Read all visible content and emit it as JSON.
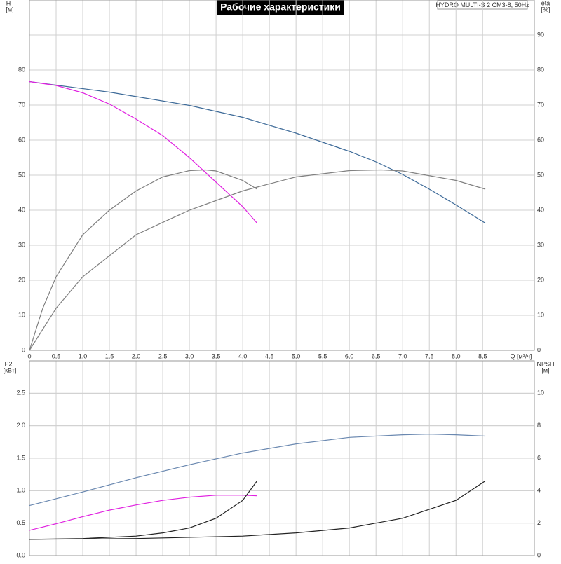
{
  "chart_data": [
    {
      "type": "line",
      "title": "Рабочие характеристики",
      "annotation": "HYDRO MULTI-S 2 CM3-8, 50Hz",
      "ylabel": "H",
      "yunit": "[м]",
      "y2label": "eta",
      "y2unit": "[%]",
      "xlabel": "Q [м³/ч]",
      "xlim": [
        0,
        9.47
      ],
      "xticks": [
        0,
        {
          "value": 0.5,
          "label": "0,5"
        },
        {
          "value": 1,
          "label": "1,0"
        },
        {
          "value": 1.5,
          "label": "1,5"
        },
        {
          "value": 2,
          "label": "2,0"
        },
        {
          "value": 2.5,
          "label": "2,5"
        },
        {
          "value": 3,
          "label": "3,0"
        },
        {
          "value": 3.5,
          "label": "3,5"
        },
        {
          "value": 4,
          "label": "4,0"
        },
        {
          "value": 4.5,
          "label": "4,5"
        },
        {
          "value": 5,
          "label": "5,0"
        },
        {
          "value": 5.5,
          "label": "5,5"
        },
        {
          "value": 6,
          "label": "6,0"
        },
        {
          "value": 6.5,
          "label": "6,5"
        },
        {
          "value": 7,
          "label": "7,0"
        },
        {
          "value": 7.5,
          "label": "7,5"
        },
        {
          "value": 8,
          "label": "8,0"
        },
        {
          "value": 8.5,
          "label": "8,5"
        }
      ],
      "ylim": [
        0,
        100
      ],
      "yticks": [
        0,
        10,
        20,
        30,
        40,
        50,
        60,
        70,
        80
      ],
      "y2lim": [
        0,
        100
      ],
      "y2ticks": [
        0,
        10,
        20,
        30,
        40,
        50,
        60,
        70,
        80,
        90
      ],
      "grid": true,
      "series": [
        {
          "color": "#3d6a98",
          "x": [
            0,
            1.5,
            3,
            4,
            5,
            6,
            6.5,
            7,
            7.5,
            8,
            8.55
          ],
          "values": [
            76.7,
            73.7,
            69.9,
            66.5,
            62,
            56.8,
            53.8,
            50.2,
            46,
            41.5,
            36.3
          ]
        },
        {
          "color": "#e020e0",
          "x": [
            0,
            0.5,
            1,
            1.5,
            2,
            2.5,
            3,
            3.5,
            4,
            4.27
          ],
          "values": [
            76.7,
            75.6,
            73.5,
            70.3,
            66,
            61.3,
            55,
            48,
            41,
            36.3
          ]
        },
        {
          "color": "#808080",
          "axis": "y2",
          "x": [
            0,
            0.25,
            0.5,
            1,
            1.5,
            2,
            2.5,
            3,
            3.3,
            3.5,
            4,
            4.27
          ],
          "values": [
            0,
            12,
            21,
            33,
            40,
            45.5,
            49.5,
            51.3,
            51.5,
            51.2,
            48.5,
            46
          ]
        },
        {
          "color": "#808080",
          "axis": "y2",
          "x": [
            0,
            0.5,
            1,
            2,
            3,
            4,
            5,
            6,
            6.6,
            7,
            8,
            8.55
          ],
          "values": [
            0,
            12,
            21,
            33,
            40,
            45.5,
            49.5,
            51.3,
            51.5,
            51.2,
            48.5,
            46
          ]
        }
      ]
    },
    {
      "type": "line",
      "ylabel": "P2",
      "yunit": "[кВт]",
      "y2label": "NPSH",
      "y2unit": "[м]",
      "xlim": [
        0,
        9.47
      ],
      "ylim": [
        0,
        3
      ],
      "yticks": [
        {
          "value": 0,
          "label": "0.0"
        },
        {
          "value": 0.5,
          "label": "0.5"
        },
        {
          "value": 1,
          "label": "1.0"
        },
        {
          "value": 1.5,
          "label": "1.5"
        },
        {
          "value": 2,
          "label": "2.0"
        },
        {
          "value": 2.5,
          "label": "2.5"
        }
      ],
      "y2lim": [
        0,
        12
      ],
      "y2ticks": [
        0,
        2,
        4,
        6,
        8,
        10
      ],
      "grid": true,
      "series": [
        {
          "color": "#6a88b0",
          "x": [
            0,
            1,
            2,
            3,
            4,
            5,
            6,
            7,
            7.5,
            8,
            8.55
          ],
          "values": [
            0.77,
            0.98,
            1.2,
            1.4,
            1.58,
            1.72,
            1.82,
            1.86,
            1.87,
            1.86,
            1.84
          ]
        },
        {
          "color": "#e020e0",
          "x": [
            0,
            0.5,
            1,
            1.5,
            2,
            2.5,
            3,
            3.5,
            4,
            4.27
          ],
          "values": [
            0.39,
            0.49,
            0.6,
            0.7,
            0.78,
            0.85,
            0.9,
            0.93,
            0.93,
            0.92
          ]
        },
        {
          "color": "#222222",
          "axis": "y2",
          "x": [
            0,
            1,
            2,
            2.5,
            3,
            3.5,
            4,
            4.27
          ],
          "values": [
            1,
            1.05,
            1.2,
            1.4,
            1.7,
            2.3,
            3.4,
            4.6
          ]
        },
        {
          "color": "#222222",
          "axis": "y2",
          "x": [
            0,
            2,
            4,
            5,
            6,
            7,
            8,
            8.55
          ],
          "values": [
            1,
            1.05,
            1.2,
            1.4,
            1.7,
            2.3,
            3.4,
            4.6
          ]
        }
      ]
    }
  ]
}
